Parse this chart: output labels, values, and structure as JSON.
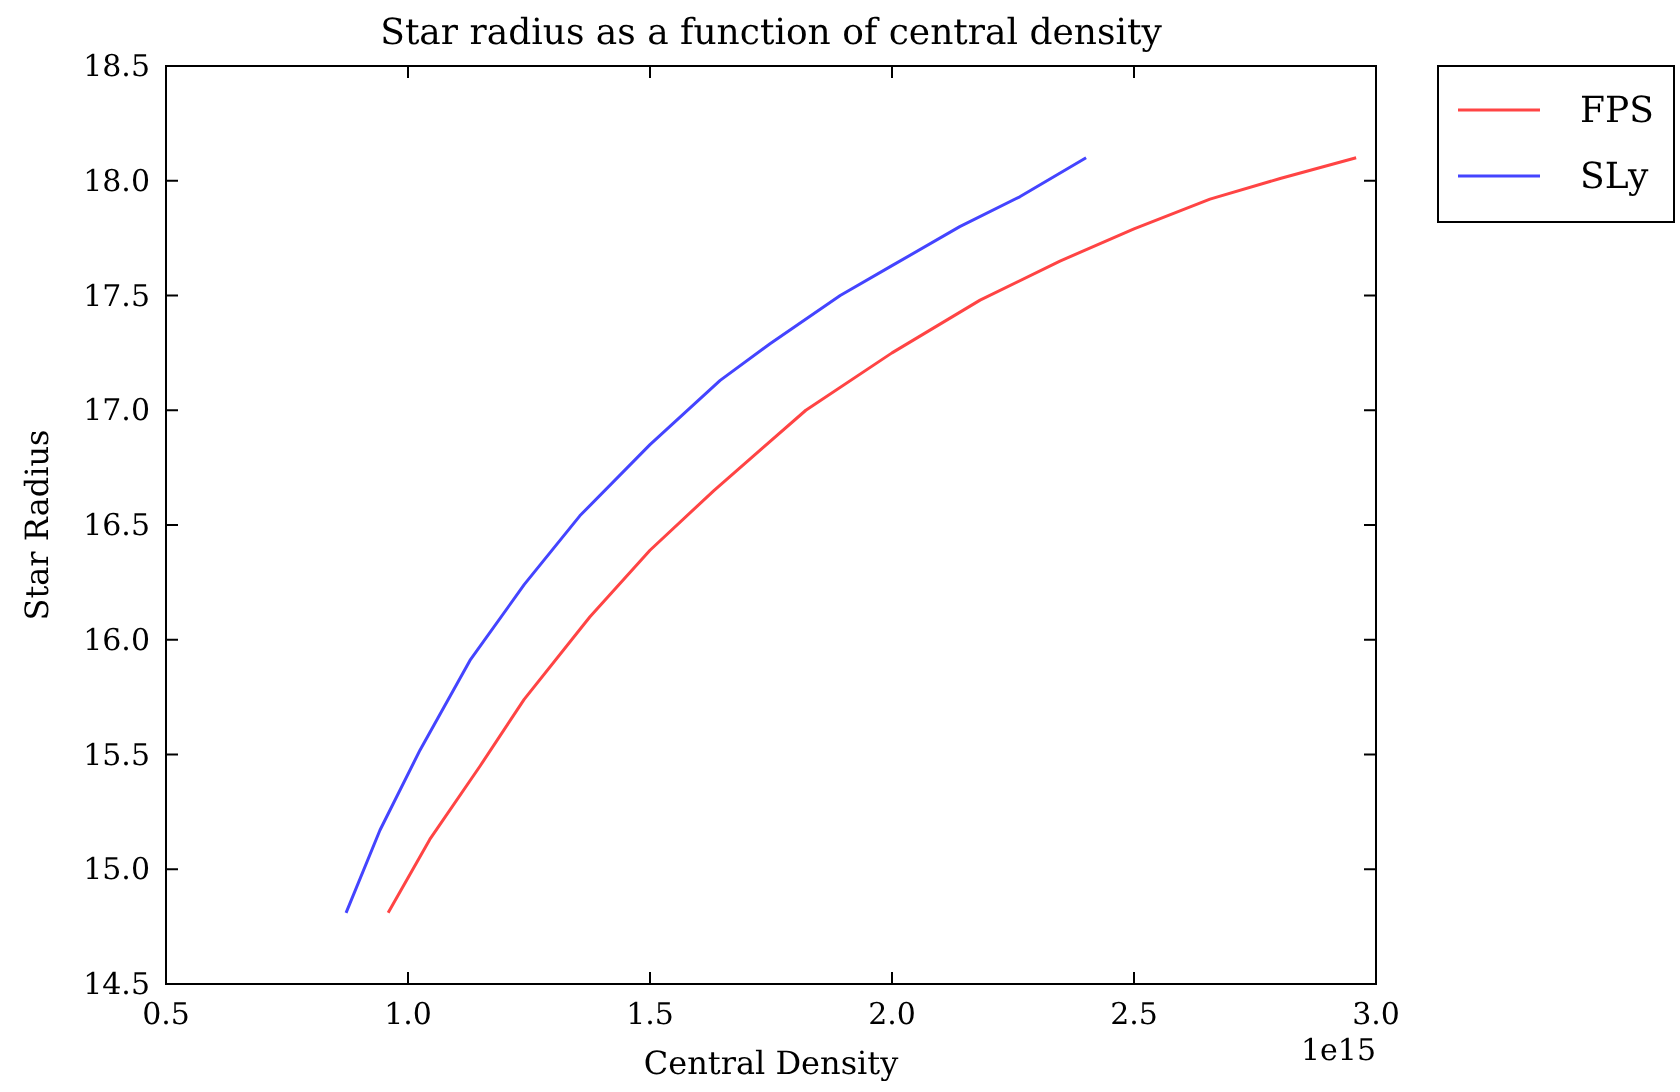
{
  "chart_data": {
    "type": "line",
    "title": "Star radius as a function of central density",
    "xlabel": "Central Density",
    "ylabel": "Star Radius",
    "annotations": [
      "1e15"
    ],
    "xlim": [
      0.5,
      3.0
    ],
    "xticks": [
      {
        "value": 0.5,
        "label": "0.5"
      },
      {
        "value": 1,
        "label": "1.0"
      },
      {
        "value": 1.5,
        "label": "1.5"
      },
      {
        "value": 2,
        "label": "2.0"
      },
      {
        "value": 2.5,
        "label": "2.5"
      },
      {
        "value": 3,
        "label": "3.0"
      }
    ],
    "ylim": [
      14.5,
      18.5
    ],
    "yticks": [
      {
        "value": 14.5,
        "label": "14.5"
      },
      {
        "value": 15,
        "label": "15.0"
      },
      {
        "value": 15.5,
        "label": "15.5"
      },
      {
        "value": 16,
        "label": "16.0"
      },
      {
        "value": 16.5,
        "label": "16.5"
      },
      {
        "value": 17,
        "label": "17.0"
      },
      {
        "value": 17.5,
        "label": "17.5"
      },
      {
        "value": 18,
        "label": "18.0"
      },
      {
        "value": 18.5,
        "label": "18.5"
      }
    ],
    "grid": false,
    "legend": "top right",
    "marker": "none",
    "line_style": "solid",
    "series": [
      {
        "name": "FPS",
        "color": "#ff4444",
        "x": [
          0.959,
          1.045,
          1.149,
          1.24,
          1.376,
          1.5,
          1.632,
          1.822,
          2.0,
          2.182,
          2.347,
          2.5,
          2.657,
          2.802,
          2.959
        ],
        "values": [
          14.81,
          15.13,
          15.45,
          15.74,
          16.1,
          16.39,
          16.65,
          17.0,
          17.25,
          17.48,
          17.65,
          17.79,
          17.92,
          18.01,
          18.1
        ]
      },
      {
        "name": "SLy",
        "color": "#4444ff",
        "x": [
          0.872,
          0.942,
          1.025,
          1.128,
          1.24,
          1.355,
          1.5,
          1.645,
          1.748,
          1.893,
          2.0,
          2.14,
          2.264,
          2.401
        ],
        "values": [
          14.81,
          15.17,
          15.52,
          15.91,
          16.24,
          16.54,
          16.85,
          17.13,
          17.29,
          17.5,
          17.63,
          17.8,
          17.93,
          18.1
        ]
      }
    ]
  }
}
